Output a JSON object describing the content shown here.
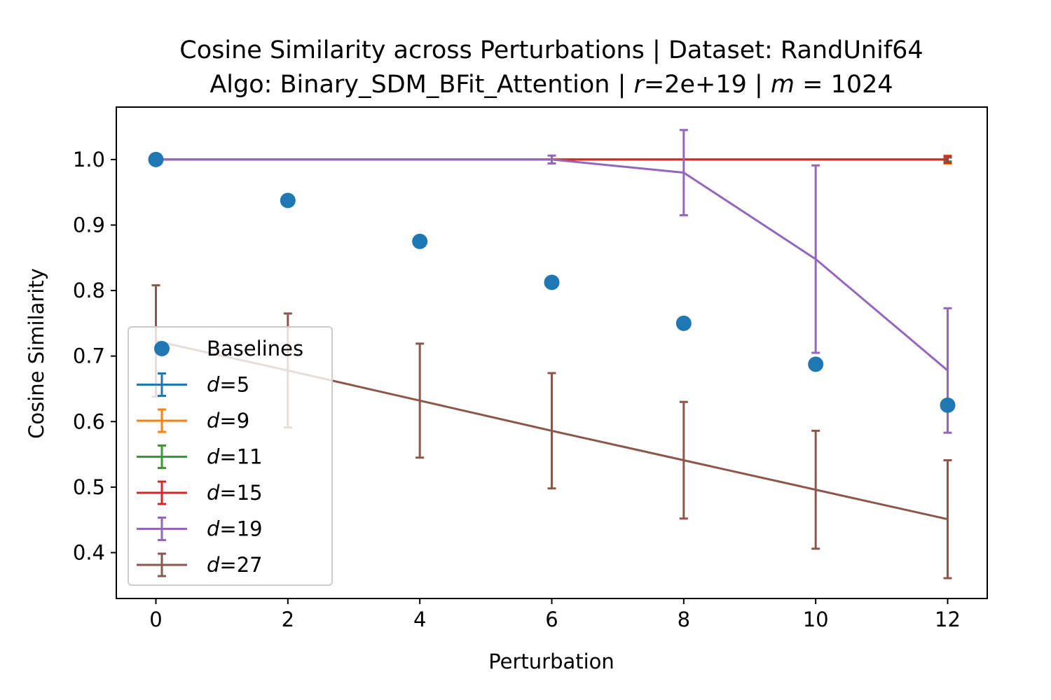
{
  "chart_data": {
    "type": "line",
    "title_line1": "Cosine Similarity across Perturbations | Dataset: RandUnif64",
    "title_line2_parts": [
      "Algo: Binary_SDM_BFit_Attention | ",
      "r",
      "=2e+19 | ",
      "m",
      " = 1024"
    ],
    "xlabel": "Perturbation",
    "ylabel": "Cosine Similarity",
    "xlim": [
      -0.6,
      12.6
    ],
    "ylim": [
      0.33,
      1.08
    ],
    "xticks": [
      0,
      2,
      4,
      6,
      8,
      10,
      12
    ],
    "xtick_labels": [
      "0",
      "2",
      "4",
      "6",
      "8",
      "10",
      "12"
    ],
    "yticks": [
      0.4,
      0.5,
      0.6,
      0.7,
      0.8,
      0.9,
      1.0
    ],
    "ytick_labels": [
      "0.4",
      "0.5",
      "0.6",
      "0.7",
      "0.8",
      "0.9",
      "1.0"
    ],
    "legend_position": "lower-left",
    "x": [
      0,
      2,
      4,
      6,
      8,
      10,
      12
    ],
    "baselines": {
      "name": "Baselines",
      "color": "#1f77b4",
      "values": [
        1.0,
        0.9375,
        0.875,
        0.8125,
        0.75,
        0.6875,
        0.625
      ]
    },
    "series": [
      {
        "name_var": "d",
        "name_value": "=5",
        "color": "#1f77b4",
        "values": [
          1.0,
          1.0,
          1.0,
          1.0,
          1.0,
          1.0,
          1.0
        ],
        "err": [
          0,
          0,
          0,
          0,
          0,
          0,
          0.003
        ]
      },
      {
        "name_var": "d",
        "name_value": "=9",
        "color": "#ff7f0e",
        "values": [
          1.0,
          1.0,
          1.0,
          1.0,
          1.0,
          1.0,
          1.0
        ],
        "err": [
          0,
          0,
          0,
          0,
          0,
          0,
          0.006
        ]
      },
      {
        "name_var": "d",
        "name_value": "=11",
        "color": "#2ca02c",
        "values": [
          1.0,
          1.0,
          1.0,
          1.0,
          1.0,
          1.0,
          1.0
        ],
        "err": [
          0,
          0,
          0,
          0,
          0,
          0,
          0.004
        ]
      },
      {
        "name_var": "d",
        "name_value": "=15",
        "color": "#d62728",
        "values": [
          1.0,
          1.0,
          1.0,
          1.0,
          1.0,
          1.0,
          1.0
        ],
        "err": [
          0,
          0,
          0,
          0,
          0,
          0,
          0.005
        ]
      },
      {
        "name_var": "d",
        "name_value": "=19",
        "color": "#9467bd",
        "values": [
          1.0,
          1.0,
          1.0,
          1.0,
          0.98,
          0.848,
          0.678
        ],
        "err": [
          0,
          0,
          0,
          0.006,
          0.065,
          0.143,
          0.095
        ]
      },
      {
        "name_var": "d",
        "name_value": "=27",
        "color": "#8c564b",
        "values": [
          0.723,
          0.678,
          0.632,
          0.586,
          0.541,
          0.496,
          0.451
        ],
        "err": [
          0.085,
          0.087,
          0.087,
          0.088,
          0.089,
          0.09,
          0.09
        ]
      }
    ]
  }
}
